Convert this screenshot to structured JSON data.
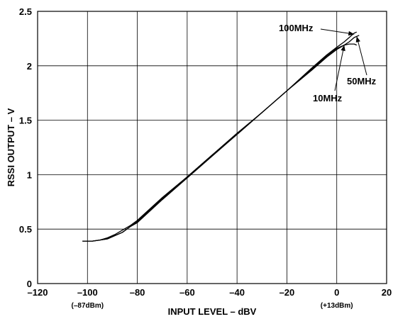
{
  "chart_data": {
    "type": "line",
    "xlabel": "INPUT LEVEL – dBV",
    "ylabel": "RSSI OUTPUT – V",
    "xlim": [
      -120,
      20
    ],
    "ylim": [
      0,
      2.5
    ],
    "grid": true,
    "x_ticks": [
      "–120",
      "–100",
      "–80",
      "–60",
      "–40",
      "–20",
      "0",
      "20"
    ],
    "y_ticks": [
      "0",
      "0.5",
      "1",
      "1.5",
      "2",
      "2.5"
    ],
    "x_sublabels": [
      {
        "x": -100,
        "text": "(–87dBm)"
      },
      {
        "x": 0,
        "text": "(+13dBm)"
      }
    ],
    "series": [
      {
        "name": "10MHz",
        "x": [
          -102,
          -98,
          -95,
          -92,
          -89,
          -86,
          -83,
          -80,
          -70,
          -60,
          -50,
          -40,
          -30,
          -20,
          -10,
          -4,
          0,
          3,
          5,
          7,
          8
        ],
        "y": [
          0.39,
          0.39,
          0.4,
          0.42,
          0.45,
          0.49,
          0.53,
          0.58,
          0.79,
          0.98,
          1.18,
          1.38,
          1.57,
          1.77,
          1.97,
          2.09,
          2.16,
          2.19,
          2.2,
          2.2,
          2.19
        ]
      },
      {
        "name": "50MHz",
        "x": [
          -102,
          -98,
          -95,
          -92,
          -89,
          -86,
          -83,
          -80,
          -70,
          -60,
          -50,
          -40,
          -30,
          -20,
          -10,
          -4,
          0,
          3,
          5,
          7,
          9
        ],
        "y": [
          0.39,
          0.39,
          0.4,
          0.41,
          0.44,
          0.47,
          0.52,
          0.57,
          0.78,
          0.98,
          1.18,
          1.37,
          1.57,
          1.77,
          1.96,
          2.08,
          2.15,
          2.19,
          2.22,
          2.26,
          2.28
        ]
      },
      {
        "name": "100MHz",
        "x": [
          -102,
          -98,
          -95,
          -92,
          -89,
          -86,
          -83,
          -80,
          -70,
          -60,
          -50,
          -40,
          -30,
          -20,
          -10,
          -4,
          0,
          3,
          5,
          7,
          8
        ],
        "y": [
          0.39,
          0.39,
          0.4,
          0.41,
          0.44,
          0.47,
          0.52,
          0.56,
          0.77,
          0.97,
          1.17,
          1.37,
          1.57,
          1.77,
          1.98,
          2.1,
          2.17,
          2.22,
          2.26,
          2.3,
          2.31
        ]
      }
    ],
    "annotations": [
      {
        "text": "100MHz",
        "target_series": "100MHz",
        "target_x": 7,
        "target_y": 2.29
      },
      {
        "text": "50MHz",
        "target_series": "50MHz",
        "target_x": 8,
        "target_y": 2.27
      },
      {
        "text": "10MHz",
        "target_series": "10MHz",
        "target_x": 3,
        "target_y": 2.19
      }
    ]
  }
}
